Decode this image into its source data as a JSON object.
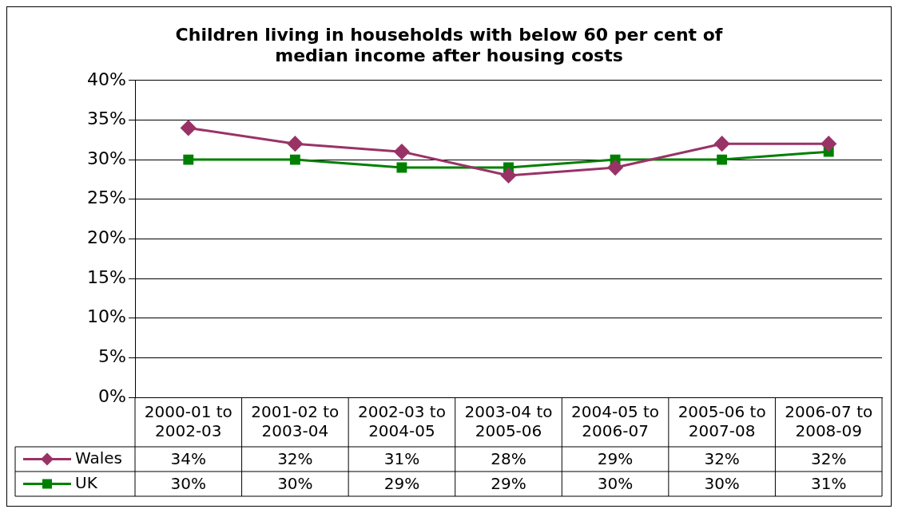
{
  "chart_data": {
    "type": "line",
    "title": "Children living in households with below 60 per cent of median income after housing costs",
    "categories": [
      "2000-01 to 2002-03",
      "2001-02 to 2003-04",
      "2002-03 to 2004-05",
      "2003-04 to 2005-06",
      "2004-05 to 2006-07",
      "2005-06 to 2007-08",
      "2006-07 to 2008-09"
    ],
    "series": [
      {
        "name": "Wales",
        "color": "#993366",
        "marker": "diamond",
        "values": [
          34,
          32,
          31,
          28,
          29,
          32,
          32
        ],
        "value_labels": [
          "34%",
          "32%",
          "31%",
          "28%",
          "29%",
          "32%",
          "32%"
        ]
      },
      {
        "name": "UK",
        "color": "#008000",
        "marker": "square",
        "values": [
          30,
          30,
          29,
          29,
          30,
          30,
          31
        ],
        "value_labels": [
          "30%",
          "30%",
          "29%",
          "29%",
          "30%",
          "30%",
          "31%"
        ]
      }
    ],
    "ylim": [
      0,
      40
    ],
    "yticks": [
      {
        "value": 0,
        "label": "0%"
      },
      {
        "value": 5,
        "label": "5%"
      },
      {
        "value": 10,
        "label": "10%"
      },
      {
        "value": 15,
        "label": "15%"
      },
      {
        "value": 20,
        "label": "20%"
      },
      {
        "value": 25,
        "label": "25%"
      },
      {
        "value": 30,
        "label": "30%"
      },
      {
        "value": 35,
        "label": "35%"
      },
      {
        "value": 40,
        "label": "40%"
      }
    ],
    "grid": "y",
    "legend": "bottom",
    "line_style": "solid"
  }
}
